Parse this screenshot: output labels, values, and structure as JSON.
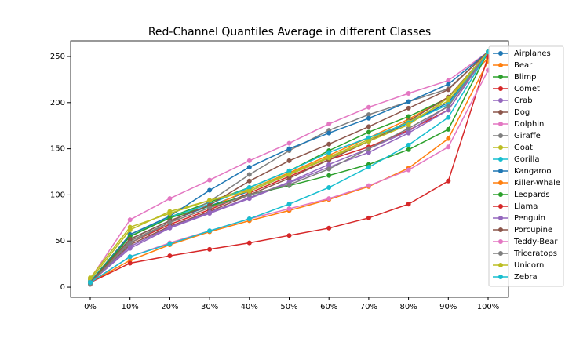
{
  "chart_data": {
    "type": "line",
    "title": "Red-Channel Quantiles Average in different Classes",
    "categories": [
      "0%",
      "10%",
      "20%",
      "30%",
      "40%",
      "50%",
      "60%",
      "70%",
      "80%",
      "90%",
      "100%"
    ],
    "ylim": [
      -11,
      267
    ],
    "yticks": [
      0,
      50,
      100,
      150,
      200,
      250
    ],
    "series": [
      {
        "name": "Airplanes",
        "color": "#1f77b4",
        "values": [
          6,
          52,
          72,
          88,
          104,
          122,
          140,
          158,
          178,
          200,
          255
        ]
      },
      {
        "name": "Bear",
        "color": "#ff7f0e",
        "values": [
          5,
          50,
          70,
          86,
          106,
          124,
          143,
          162,
          182,
          206,
          248
        ]
      },
      {
        "name": "Blimp",
        "color": "#2ca02c",
        "values": [
          6,
          57,
          76,
          92,
          108,
          126,
          148,
          168,
          185,
          205,
          255
        ]
      },
      {
        "name": "Comet",
        "color": "#d62728",
        "values": [
          5,
          48,
          68,
          84,
          102,
          120,
          138,
          152,
          170,
          192,
          255
        ]
      },
      {
        "name": "Crab",
        "color": "#9467bd",
        "values": [
          5,
          42,
          64,
          80,
          96,
          113,
          130,
          146,
          167,
          192,
          255
        ]
      },
      {
        "name": "Dog",
        "color": "#8c564b",
        "values": [
          5,
          46,
          66,
          82,
          100,
          118,
          138,
          158,
          180,
          206,
          255
        ]
      },
      {
        "name": "Dolphin",
        "color": "#e377c2",
        "values": [
          9,
          73,
          96,
          116,
          137,
          156,
          177,
          195,
          210,
          224,
          255
        ]
      },
      {
        "name": "Giraffe",
        "color": "#7f7f7f",
        "values": [
          3,
          50,
          70,
          93,
          122,
          148,
          170,
          187,
          201,
          215,
          255
        ]
      },
      {
        "name": "Goat",
        "color": "#bcbd22",
        "values": [
          8,
          62,
          82,
          94,
          106,
          123,
          141,
          160,
          179,
          202,
          255
        ]
      },
      {
        "name": "Gorilla",
        "color": "#17becf",
        "values": [
          6,
          55,
          76,
          90,
          108,
          126,
          146,
          162,
          178,
          198,
          255
        ]
      },
      {
        "name": "Kangaroo",
        "color": "#1f77b4",
        "values": [
          5,
          57,
          77,
          105,
          130,
          150,
          167,
          183,
          201,
          220,
          255
        ]
      },
      {
        "name": "Killer-Whale",
        "color": "#ff7f0e",
        "values": [
          5,
          29,
          46,
          60,
          72,
          83,
          95,
          109,
          129,
          161,
          245
        ]
      },
      {
        "name": "Leopards",
        "color": "#2ca02c",
        "values": [
          5,
          55,
          75,
          88,
          100,
          110,
          121,
          133,
          149,
          171,
          255
        ]
      },
      {
        "name": "Llama",
        "color": "#d62728",
        "values": [
          5,
          26,
          34,
          41,
          48,
          56,
          64,
          75,
          90,
          115,
          250
        ]
      },
      {
        "name": "Penguin",
        "color": "#9467bd",
        "values": [
          5,
          44,
          65,
          81,
          97,
          114,
          133,
          150,
          169,
          196,
          255
        ]
      },
      {
        "name": "Porcupine",
        "color": "#8c564b",
        "values": [
          5,
          52,
          72,
          89,
          115,
          137,
          155,
          174,
          194,
          214,
          255
        ]
      },
      {
        "name": "Teddy-Bear",
        "color": "#e377c2",
        "values": [
          5,
          33,
          48,
          61,
          74,
          85,
          96,
          110,
          127,
          152,
          235
        ]
      },
      {
        "name": "Triceratops",
        "color": "#7f7f7f",
        "values": [
          4,
          48,
          70,
          86,
          100,
          111,
          128,
          150,
          172,
          196,
          255
        ]
      },
      {
        "name": "Unicorn",
        "color": "#bcbd22",
        "values": [
          10,
          65,
          80,
          94,
          104,
          122,
          140,
          158,
          176,
          205,
          255
        ]
      },
      {
        "name": "Zebra",
        "color": "#17becf",
        "values": [
          5,
          33,
          47,
          61,
          74,
          90,
          108,
          130,
          154,
          184,
          255
        ]
      }
    ]
  }
}
